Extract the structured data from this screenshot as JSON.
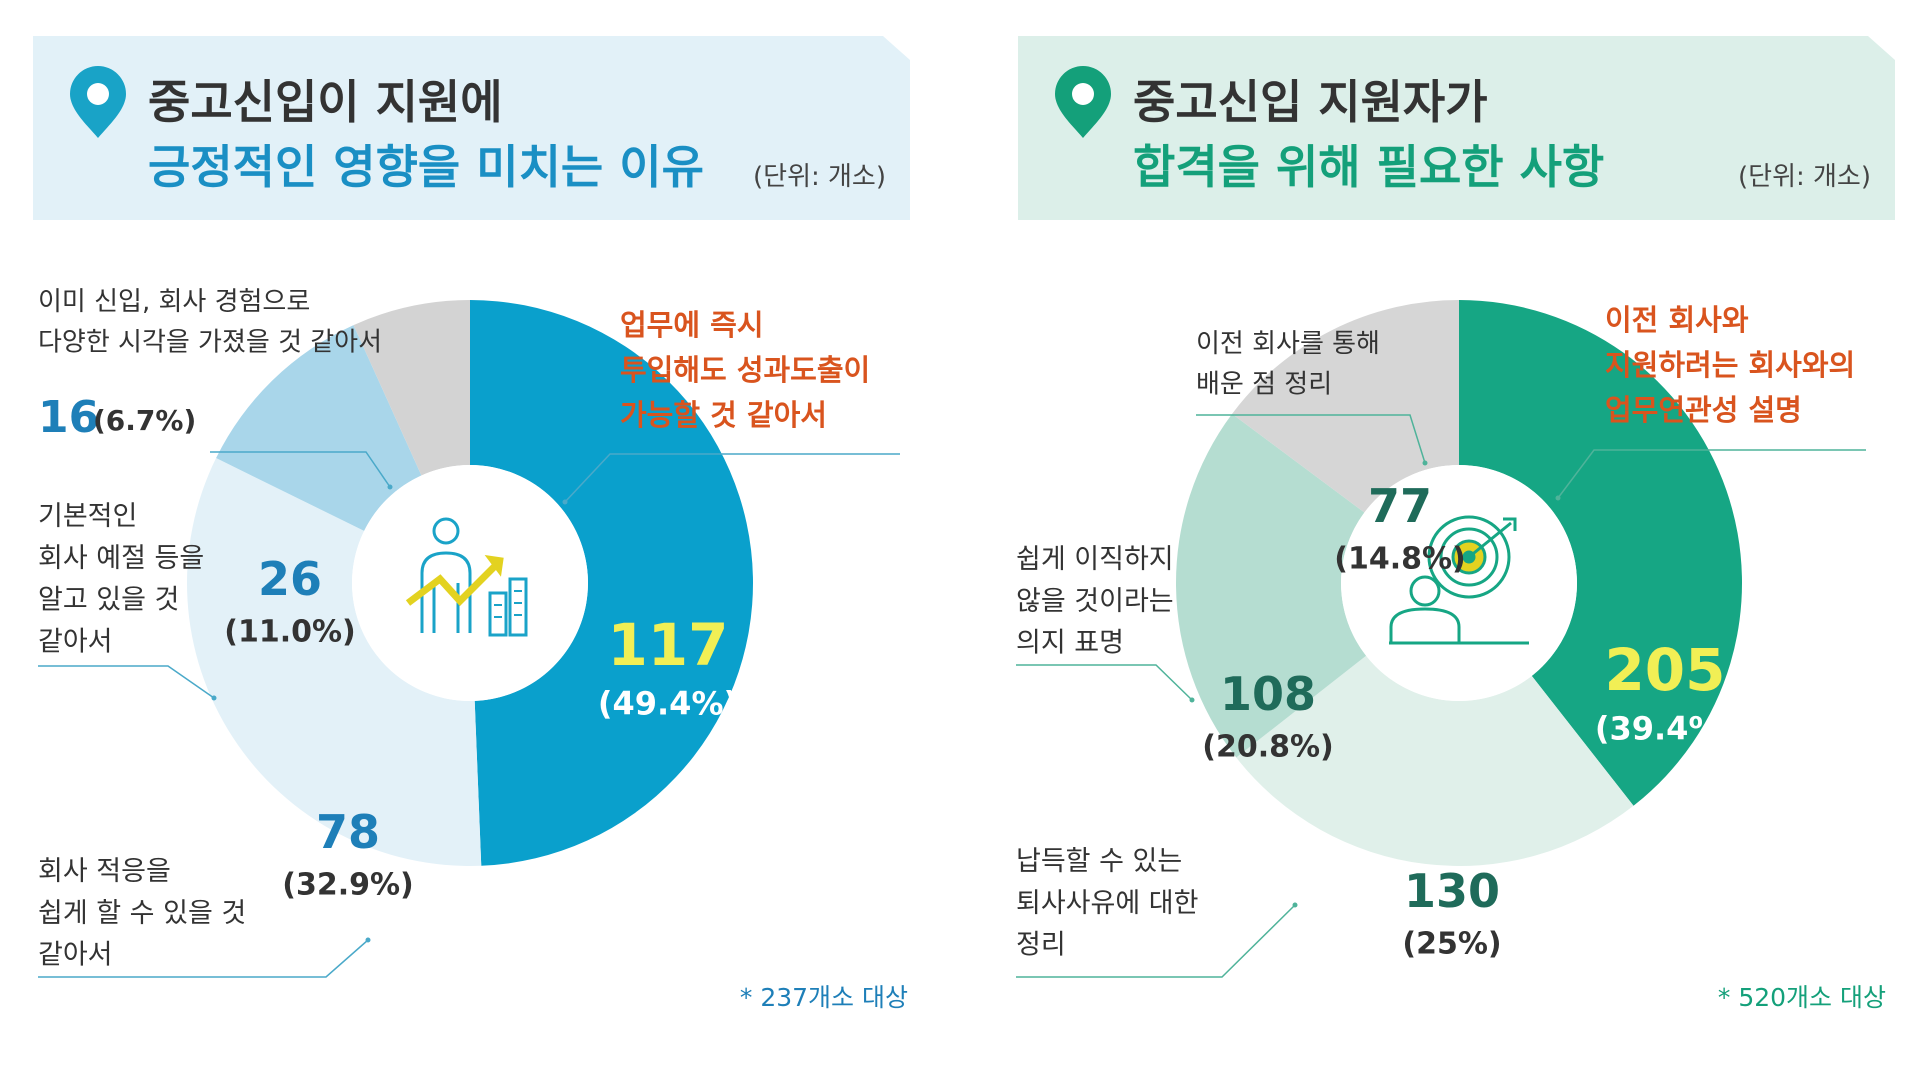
{
  "charts": [
    {
      "theme": {
        "header_bg": "#e2f1f8",
        "title2_color": "#1a8fc4",
        "pin": "#19a3c7",
        "main": "#0aa0cc",
        "colors": [
          "#0aa0cc",
          "#e3f1f8",
          "#a9d6ea",
          "#d3d3d3"
        ],
        "main_value_color": "#f1ef55",
        "value_color": "#1e7fb8",
        "callout_color": "#d9541e",
        "line_color": "#4aa9c9",
        "note_color": "#1e7fb8"
      },
      "title_line1": "중고신입이 지원에",
      "title_line2": "긍정적인 영향을 미치는 이유",
      "unit": "(단위: 개소)",
      "note": "* 237개소 대상",
      "icon": "person-growth-chart-icon",
      "slices": [
        {
          "label": [
            "업무에 즉시",
            "투입해도 성과도출이",
            "가능할 것 같아서"
          ],
          "value": "117",
          "pct": "(49.4%)"
        },
        {
          "label": [
            "회사 적응을",
            "쉽게 할 수 있을 것",
            "같아서"
          ],
          "value": "78",
          "pct": "(32.9%)"
        },
        {
          "label": [
            "기본적인",
            "회사 예절 등을",
            "알고 있을 것",
            "같아서"
          ],
          "value": "26",
          "pct": "(11.0%)"
        },
        {
          "label": [
            "이미 신입, 회사 경험으로",
            "다양한 시각을 가졌을 것 같아서"
          ],
          "value": "16",
          "pct": "(6.7%)"
        }
      ]
    },
    {
      "theme": {
        "header_bg": "#dcefe9",
        "title2_color": "#14a07a",
        "pin": "#14a07a",
        "main": "#16a684",
        "colors": [
          "#16a684",
          "#e0f0ea",
          "#b5ddd1",
          "#d6d6d6"
        ],
        "main_value_color": "#f1ef55",
        "value_color": "#1f6b5a",
        "callout_color": "#d9541e",
        "line_color": "#4fb39a",
        "note_color": "#14a07a"
      },
      "title_line1": "중고신입 지원자가",
      "title_line2": "합격을 위해 필요한 사항",
      "unit": "(단위: 개소)",
      "note": "* 520개소 대상",
      "icon": "person-target-icon",
      "slices": [
        {
          "label": [
            "이전 회사와",
            "지원하려는 회사와의",
            "업무연관성 설명"
          ],
          "value": "205",
          "pct": "(39.4%)"
        },
        {
          "label": [
            "납득할 수 있는",
            "퇴사사유에 대한",
            "정리"
          ],
          "value": "130",
          "pct": "(25%)"
        },
        {
          "label": [
            "쉽게 이직하지",
            "않을 것이라는",
            "의지 표명"
          ],
          "value": "108",
          "pct": "(20.8%)"
        },
        {
          "label": [
            "이전 회사를 통해",
            "배운 점 정리"
          ],
          "value": "77",
          "pct": "(14.8%)"
        }
      ]
    }
  ],
  "chart_data": [
    {
      "type": "pie",
      "title": "중고신입이 지원에 긍정적인 영향을 미치는 이유",
      "categories": [
        "업무에 즉시 투입해도 성과도출이 가능할 것 같아서",
        "회사 적응을 쉽게 할 수 있을 것 같아서",
        "기본적인 회사 예절 등을 알고 있을 것 같아서",
        "이미 신입, 회사 경험으로 다양한 시각을 가졌을 것 같아서"
      ],
      "values": [
        117,
        78,
        26,
        16
      ],
      "percentages": [
        49.4,
        32.9,
        11.0,
        6.7
      ],
      "unit": "개소"
    },
    {
      "type": "pie",
      "title": "중고신입 지원자가 합격을 위해 필요한 사항",
      "categories": [
        "이전 회사와 지원하려는 회사와의 업무연관성 설명",
        "납득할 수 있는 퇴사사유에 대한 정리",
        "쉽게 이직하지 않을 것이라는 의지 표명",
        "이전 회사를 통해 배운 점 정리"
      ],
      "values": [
        205,
        130,
        108,
        77
      ],
      "percentages": [
        39.4,
        25,
        20.8,
        14.8
      ],
      "unit": "개소"
    }
  ]
}
